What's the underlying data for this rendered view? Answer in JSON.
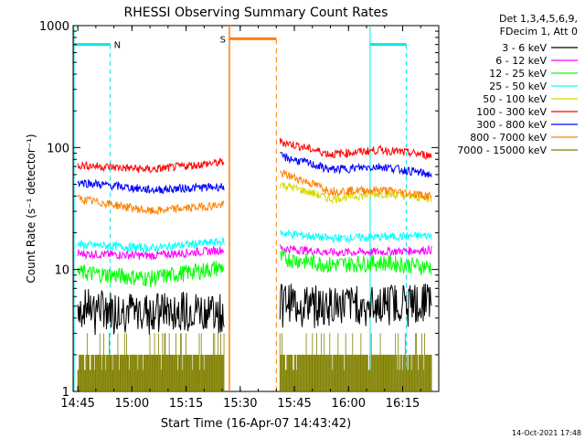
{
  "chart_data": {
    "type": "line",
    "title": "RHESSI Observing Summary Count Rates",
    "xlabel": "Start Time (16-Apr-07 14:43:42)",
    "ylabel": "Count Rate (s⁻¹ detector⁻¹)",
    "yscale": "log",
    "ylim": [
      1,
      1000
    ],
    "x_range_minutes": [
      "14:43:42",
      "16:25:00"
    ],
    "x_ticks": [
      "14:45",
      "15:00",
      "15:15",
      "15:30",
      "15:45",
      "16:00",
      "16:15"
    ],
    "y_ticks": [
      "1",
      "10",
      "100",
      "1000"
    ],
    "legend_header": [
      "Det 1,3,4,5,6,9,",
      "FDecim 1, Att 0"
    ],
    "legend_position": "right",
    "grid": false,
    "series": [
      {
        "name": "3 - 6 keV",
        "color": "#000000",
        "seg1": [
          5.2,
          4.8,
          5.0
        ],
        "seg2": [
          5.8,
          5.4,
          5.6,
          6.0
        ]
      },
      {
        "name": "6 - 12 keV",
        "color": "#ff00ff",
        "seg1": [
          13.5,
          13.0,
          14.5
        ],
        "seg2": [
          15.0,
          13.8,
          14.0,
          14.5
        ]
      },
      {
        "name": "12 - 25 keV",
        "color": "#00ff00",
        "seg1": [
          9.5,
          8.5,
          10.5
        ],
        "seg2": [
          12.5,
          11.0,
          11.5,
          10.5
        ]
      },
      {
        "name": "25 - 50 keV",
        "color": "#00ffff",
        "seg1": [
          16.0,
          15.0,
          17.0
        ],
        "seg2": [
          20.0,
          18.0,
          18.5,
          19.0
        ]
      },
      {
        "name": "50 - 100 keV",
        "color": "#d8d800",
        "seg1": [],
        "seg2": [
          50.0,
          38.0,
          42.0,
          38.0
        ]
      },
      {
        "name": "100 - 300 keV",
        "color": "#ff0000",
        "seg1": [
          72.0,
          66.0,
          76.0
        ],
        "seg2": [
          112.0,
          88.0,
          96.0,
          86.0
        ]
      },
      {
        "name": "300 - 800 keV",
        "color": "#0000ff",
        "seg1": [
          52.0,
          45.0,
          48.0
        ],
        "seg2": [
          85.0,
          66.0,
          70.0,
          60.0
        ]
      },
      {
        "name": "800 - 7000 keV",
        "color": "#ff8000",
        "seg1": [
          38.0,
          30.0,
          34.0
        ],
        "seg2": [
          62.0,
          44.0,
          45.0,
          40.0
        ]
      },
      {
        "name": "7000 - 15000 keV",
        "color": "#808000",
        "seg1": [
          1.5,
          1.5,
          1.5
        ],
        "seg2": [
          1.5,
          1.5,
          1.5,
          1.5
        ]
      }
    ],
    "annotations": {
      "night_label": "N",
      "saa_label": "S"
    },
    "footer_date": "14-Oct-2021 17:48"
  }
}
